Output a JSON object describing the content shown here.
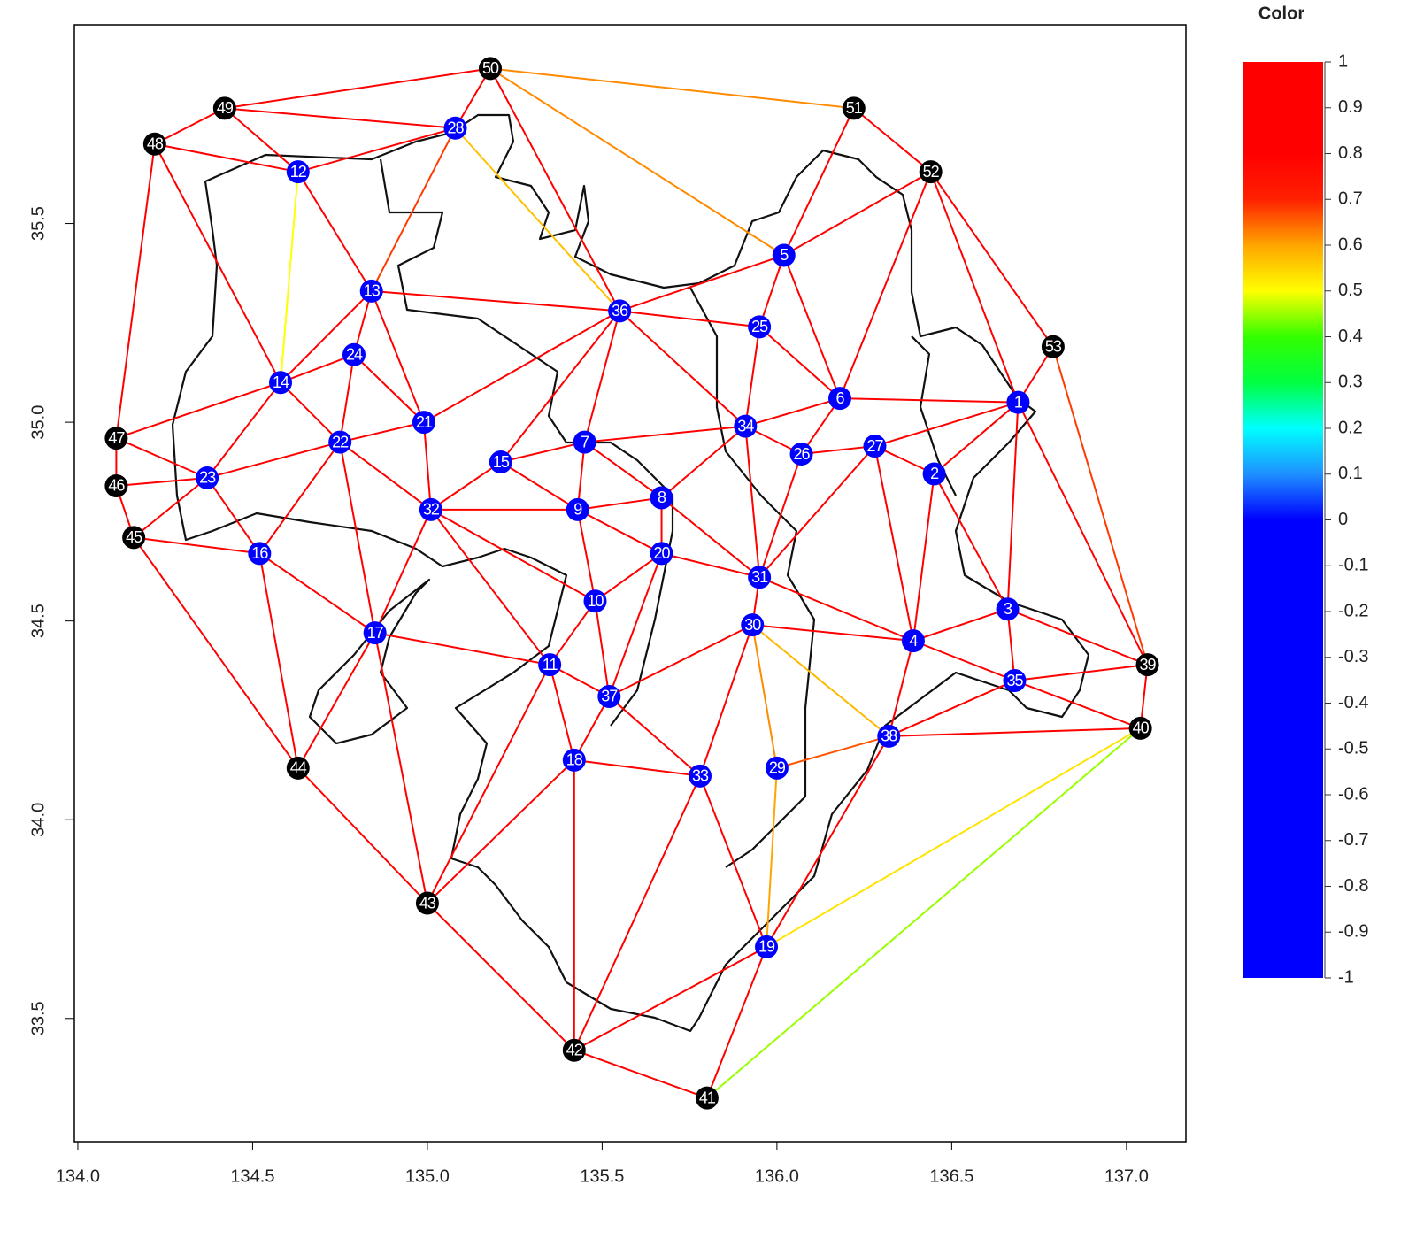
{
  "chart_data": {
    "type": "network",
    "xlim": [
      133.99,
      137.17
    ],
    "ylim": [
      33.19,
      36.0
    ],
    "xticks": [
      {
        "value": 134,
        "label": "134.0"
      },
      134.5,
      {
        "value": 135,
        "label": "135.0"
      },
      135.5,
      {
        "value": 136,
        "label": "136.0"
      },
      136.5,
      {
        "value": 137,
        "label": "137.0"
      }
    ],
    "yticks": [
      33.5,
      {
        "value": 34,
        "label": "34.0"
      },
      34.5,
      {
        "value": 35,
        "label": "35.0"
      },
      35.5
    ],
    "nodes": {
      "labels": [
        "1",
        "2",
        "3",
        "4",
        "5",
        "6",
        "7",
        "8",
        "9",
        "10",
        "11",
        "12",
        "13",
        "14",
        "15",
        "16",
        "17",
        "18",
        "19",
        "20",
        "21",
        "22",
        "23",
        "24",
        "25",
        "26",
        "27",
        "28",
        "29",
        "30",
        "31",
        "32",
        "33",
        "34",
        "35",
        "36",
        "37",
        "38",
        "39",
        "40",
        "41",
        "42",
        "43",
        "44",
        "45",
        "46",
        "47",
        "48",
        "49",
        "50",
        "51",
        "52",
        "53"
      ],
      "x": [
        136.69,
        136.45,
        136.66,
        136.39,
        136.02,
        136.18,
        135.45,
        135.67,
        135.43,
        135.48,
        135.35,
        134.63,
        134.84,
        134.58,
        135.21,
        134.52,
        134.85,
        135.42,
        135.97,
        135.67,
        134.99,
        134.75,
        134.37,
        134.79,
        135.95,
        136.07,
        136.28,
        135.08,
        136.0,
        135.93,
        135.95,
        135.01,
        135.78,
        135.91,
        136.68,
        135.55,
        135.52,
        136.32,
        137.06,
        137.04,
        135.8,
        135.42,
        135.0,
        134.63,
        134.16,
        134.11,
        134.11,
        134.22,
        134.42,
        135.18,
        136.22,
        136.44,
        136.79
      ],
      "y": [
        35.05,
        34.87,
        34.53,
        34.45,
        35.42,
        35.06,
        34.95,
        34.81,
        34.78,
        34.55,
        34.39,
        35.63,
        35.33,
        35.1,
        34.9,
        34.67,
        34.47,
        34.15,
        33.68,
        34.67,
        35.0,
        34.95,
        34.86,
        35.17,
        35.24,
        34.92,
        34.94,
        35.74,
        34.13,
        34.49,
        34.61,
        34.78,
        34.11,
        34.99,
        34.35,
        35.28,
        34.31,
        34.21,
        34.39,
        34.23,
        33.3,
        33.42,
        33.79,
        34.13,
        34.71,
        34.84,
        34.96,
        35.7,
        35.79,
        35.89,
        35.79,
        35.63,
        35.19
      ],
      "colors": [
        "#0000ff",
        "#0000ff",
        "#0000ff",
        "#0000ff",
        "#0000ff",
        "#0000ff",
        "#0000ff",
        "#0000ff",
        "#0000ff",
        "#0000ff",
        "#0000ff",
        "#0000ff",
        "#0000ff",
        "#0000ff",
        "#0000ff",
        "#0000ff",
        "#0000ff",
        "#0000ff",
        "#0000ff",
        "#0000ff",
        "#0000ff",
        "#0000ff",
        "#0000ff",
        "#0000ff",
        "#0000ff",
        "#0000ff",
        "#0000ff",
        "#0000ff",
        "#0000ff",
        "#0000ff",
        "#0000ff",
        "#0000ff",
        "#0000ff",
        "#0000ff",
        "#0000ff",
        "#0000ff",
        "#0000ff",
        "#0000ff",
        "#000000",
        "#000000",
        "#000000",
        "#000000",
        "#000000",
        "#000000",
        "#000000",
        "#000000",
        "#000000",
        "#000000",
        "#000000",
        "#000000",
        "#000000",
        "#000000",
        "#000000"
      ]
    },
    "edges": {
      "from": [
        50,
        50,
        50,
        50,
        50,
        49,
        49,
        49,
        48,
        48,
        48,
        28,
        28,
        28,
        12,
        12,
        51,
        51,
        52,
        52,
        52,
        52,
        53,
        53,
        13,
        13,
        13,
        13,
        14,
        14,
        14,
        14,
        47,
        47,
        46,
        46,
        45,
        45,
        45,
        23,
        23,
        24,
        24,
        22,
        22,
        22,
        22,
        21,
        21,
        36,
        36,
        36,
        36,
        36,
        5,
        5,
        25,
        25,
        6,
        6,
        6,
        26,
        1,
        1,
        1,
        1,
        34,
        34,
        34,
        34,
        7,
        7,
        7,
        15,
        15,
        32,
        32,
        32,
        32,
        9,
        9,
        9,
        8,
        8,
        20,
        20,
        20,
        27,
        27,
        27,
        27,
        2,
        2,
        31,
        31,
        30,
        30,
        30,
        30,
        30,
        10,
        10,
        16,
        16,
        17,
        17,
        17,
        11,
        11,
        11,
        37,
        37,
        3,
        3,
        3,
        4,
        4,
        35,
        35,
        35,
        38,
        38,
        38,
        39,
        40,
        40,
        18,
        18,
        18,
        33,
        33,
        29,
        19,
        19,
        42,
        42,
        43
      ],
      "to": [
        49,
        28,
        51,
        5,
        36,
        48,
        28,
        12,
        12,
        47,
        14,
        12,
        13,
        36,
        14,
        13,
        5,
        52,
        5,
        6,
        1,
        53,
        1,
        39,
        36,
        24,
        21,
        14,
        24,
        22,
        23,
        47,
        23,
        46,
        23,
        45,
        23,
        16,
        44,
        22,
        16,
        22,
        21,
        21,
        32,
        16,
        17,
        36,
        32,
        25,
        5,
        7,
        15,
        34,
        25,
        6,
        34,
        6,
        1,
        34,
        26,
        31,
        27,
        2,
        3,
        39,
        7,
        26,
        8,
        31,
        15,
        9,
        8,
        32,
        9,
        9,
        10,
        11,
        17,
        8,
        10,
        20,
        20,
        31,
        31,
        10,
        37,
        26,
        2,
        31,
        4,
        4,
        3,
        30,
        4,
        4,
        37,
        33,
        29,
        38,
        11,
        37,
        17,
        44,
        11,
        44,
        43,
        37,
        18,
        43,
        18,
        33,
        4,
        35,
        39,
        35,
        38,
        38,
        39,
        40,
        40,
        29,
        19,
        40,
        19,
        41,
        33,
        43,
        42,
        19,
        42,
        19,
        42,
        41,
        43,
        41,
        44
      ],
      "values": [
        0.8,
        0.8,
        0.62,
        0.62,
        0.8,
        0.8,
        0.8,
        0.8,
        0.8,
        0.8,
        0.8,
        0.8,
        0.68,
        0.57,
        0.5,
        0.8,
        0.8,
        0.8,
        0.8,
        0.8,
        0.8,
        0.8,
        0.8,
        0.68,
        0.8,
        0.8,
        0.8,
        0.8,
        0.8,
        0.8,
        0.8,
        0.8,
        0.8,
        0.8,
        0.8,
        0.8,
        0.8,
        0.8,
        0.8,
        0.8,
        0.8,
        0.8,
        0.8,
        0.8,
        0.8,
        0.8,
        0.8,
        0.8,
        0.8,
        0.8,
        0.8,
        0.8,
        0.8,
        0.8,
        0.8,
        0.8,
        0.8,
        0.8,
        0.8,
        0.8,
        0.8,
        0.8,
        0.8,
        0.8,
        0.8,
        0.8,
        0.8,
        0.8,
        0.8,
        0.8,
        0.8,
        0.8,
        0.8,
        0.8,
        0.8,
        0.8,
        0.8,
        0.8,
        0.8,
        0.8,
        0.8,
        0.8,
        0.8,
        0.8,
        0.8,
        0.8,
        0.8,
        0.8,
        0.8,
        0.8,
        0.8,
        0.8,
        0.8,
        0.8,
        0.8,
        0.8,
        0.8,
        0.8,
        0.62,
        0.58,
        0.8,
        0.8,
        0.8,
        0.8,
        0.8,
        0.8,
        0.8,
        0.8,
        0.8,
        0.8,
        0.8,
        0.8,
        0.8,
        0.8,
        0.8,
        0.8,
        0.8,
        0.8,
        0.8,
        0.8,
        0.8,
        0.66,
        0.8,
        0.8,
        0.53,
        0.45,
        0.8,
        0.8,
        0.8,
        0.8,
        0.8,
        0.6,
        0.8,
        0.8,
        0.8,
        0.8,
        0.8
      ]
    },
    "colorbar": {
      "title": "Color",
      "lim": [
        -1,
        1
      ],
      "ticks": [
        1,
        0.9,
        0.8,
        0.7,
        0.6,
        0.5,
        0.4,
        0.3,
        0.2,
        0.1,
        0,
        -0.1,
        -0.2,
        -0.3,
        -0.4,
        -0.5,
        -0.6,
        -0.7,
        -0.8,
        -0.9,
        -1
      ],
      "colors": [
        "#0000ff",
        "#0000ff",
        "#0000ff",
        "#0000ff",
        "#0000ff",
        "#0000ff",
        "#0000ff",
        "#0000ff",
        "#0000ff",
        "#0000ff",
        "#0000ff",
        "#1e90ff",
        "#00ffff",
        "#00ff40",
        "#33ff00",
        "#ffff00",
        "#ffa500",
        "#ff2000",
        "#ff0000",
        "#ff0000",
        "#ff0000"
      ]
    }
  }
}
